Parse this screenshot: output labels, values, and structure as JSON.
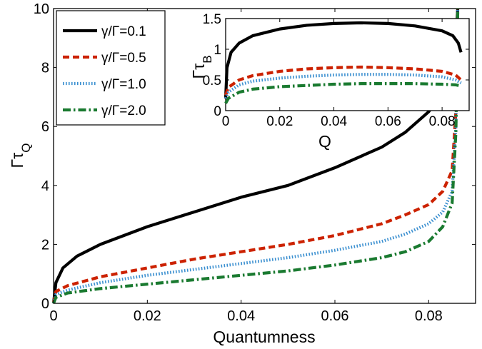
{
  "chart_data": [
    {
      "type": "line",
      "role": "main",
      "xlabel": "Quantumness",
      "ylabel_main": "Γτ",
      "ylabel_sub": "Q",
      "xlim": [
        0,
        0.09
      ],
      "ylim": [
        0,
        10
      ],
      "xticks": [
        0,
        0.02,
        0.04,
        0.06,
        0.08
      ],
      "xtick_labels": [
        "0",
        "0.02",
        "0.04",
        "0.06",
        "0.08"
      ],
      "yticks": [
        0,
        2,
        4,
        6,
        8,
        10
      ],
      "ytick_labels": [
        "0",
        "2",
        "4",
        "6",
        "8",
        "10"
      ],
      "legend": {
        "placement": "top-left"
      },
      "series": [
        {
          "name": "γ/Γ=0.1",
          "color": "#000000",
          "style": "solid",
          "x": [
            0,
            0.0005,
            0.002,
            0.005,
            0.01,
            0.02,
            0.03,
            0.04,
            0.05,
            0.06,
            0.07,
            0.075,
            0.08,
            0.083,
            0.085,
            0.0858,
            0.0862
          ],
          "y": [
            0,
            0.7,
            1.2,
            1.6,
            2.0,
            2.6,
            3.1,
            3.6,
            4.0,
            4.6,
            5.3,
            5.8,
            6.5,
            7.2,
            8.0,
            9.0,
            10.0
          ]
        },
        {
          "name": "γ/Γ=0.5",
          "color": "#cc2200",
          "style": "dashed",
          "x": [
            0,
            0.0005,
            0.003,
            0.01,
            0.02,
            0.03,
            0.04,
            0.05,
            0.06,
            0.07,
            0.075,
            0.08,
            0.083,
            0.085,
            0.0858,
            0.0862
          ],
          "y": [
            0,
            0.4,
            0.6,
            0.9,
            1.2,
            1.5,
            1.75,
            2.0,
            2.3,
            2.7,
            3.0,
            3.35,
            3.8,
            4.5,
            6.5,
            10.0
          ]
        },
        {
          "name": "γ/Γ=1.0",
          "color": "#3a8fd0",
          "style": "dotted",
          "x": [
            0,
            0.0005,
            0.003,
            0.01,
            0.02,
            0.03,
            0.04,
            0.05,
            0.06,
            0.07,
            0.075,
            0.08,
            0.083,
            0.085,
            0.0858,
            0.0862
          ],
          "y": [
            0,
            0.3,
            0.45,
            0.7,
            0.95,
            1.15,
            1.35,
            1.55,
            1.8,
            2.1,
            2.35,
            2.7,
            3.1,
            3.8,
            6.0,
            10.0
          ]
        },
        {
          "name": "γ/Γ=2.0",
          "color": "#1a7a30",
          "style": "dashdot",
          "x": [
            0,
            0.0005,
            0.003,
            0.01,
            0.02,
            0.03,
            0.04,
            0.05,
            0.06,
            0.07,
            0.075,
            0.08,
            0.083,
            0.085,
            0.0858,
            0.0862
          ],
          "y": [
            0,
            0.2,
            0.35,
            0.5,
            0.65,
            0.8,
            0.95,
            1.1,
            1.3,
            1.55,
            1.75,
            2.1,
            2.6,
            3.4,
            5.8,
            10.0
          ]
        }
      ]
    },
    {
      "type": "line",
      "role": "inset",
      "xlabel": "Q",
      "ylabel_main": "Γτ",
      "ylabel_sub": "B",
      "xlim": [
        0,
        0.09
      ],
      "ylim": [
        0,
        1.5
      ],
      "xticks": [
        0,
        0.02,
        0.04,
        0.06,
        0.08
      ],
      "xtick_labels": [
        "0",
        "0.02",
        "0.04",
        "0.06",
        "0.08"
      ],
      "yticks": [
        0,
        0.5,
        1,
        1.5
      ],
      "ytick_labels": [
        "0",
        "0.5",
        "1",
        "1.5"
      ],
      "series": [
        {
          "name": "γ/Γ=0.1",
          "color": "#000000",
          "style": "solid",
          "x": [
            0,
            0.0005,
            0.002,
            0.005,
            0.01,
            0.02,
            0.03,
            0.04,
            0.05,
            0.06,
            0.07,
            0.08,
            0.084,
            0.086,
            0.087
          ],
          "y": [
            0.2,
            0.7,
            0.95,
            1.1,
            1.22,
            1.33,
            1.39,
            1.42,
            1.43,
            1.42,
            1.38,
            1.3,
            1.22,
            1.1,
            0.95
          ]
        },
        {
          "name": "γ/Γ=0.5",
          "color": "#cc2200",
          "style": "dashed",
          "x": [
            0,
            0.001,
            0.005,
            0.01,
            0.02,
            0.03,
            0.04,
            0.05,
            0.06,
            0.07,
            0.08,
            0.085,
            0.087
          ],
          "y": [
            0.25,
            0.38,
            0.5,
            0.57,
            0.64,
            0.68,
            0.7,
            0.71,
            0.7,
            0.68,
            0.64,
            0.58,
            0.5
          ]
        },
        {
          "name": "γ/Γ=1.0",
          "color": "#3a8fd0",
          "style": "dotted",
          "x": [
            0,
            0.001,
            0.005,
            0.01,
            0.02,
            0.03,
            0.04,
            0.05,
            0.06,
            0.07,
            0.08,
            0.085,
            0.087
          ],
          "y": [
            0.2,
            0.3,
            0.42,
            0.48,
            0.53,
            0.56,
            0.58,
            0.59,
            0.59,
            0.58,
            0.55,
            0.5,
            0.45
          ]
        },
        {
          "name": "γ/Γ=2.0",
          "color": "#1a7a30",
          "style": "dashdot",
          "x": [
            0,
            0.001,
            0.005,
            0.01,
            0.02,
            0.03,
            0.04,
            0.05,
            0.06,
            0.07,
            0.08,
            0.085,
            0.087
          ],
          "y": [
            0.12,
            0.2,
            0.3,
            0.35,
            0.39,
            0.41,
            0.43,
            0.44,
            0.44,
            0.44,
            0.43,
            0.42,
            0.4
          ]
        }
      ]
    }
  ]
}
